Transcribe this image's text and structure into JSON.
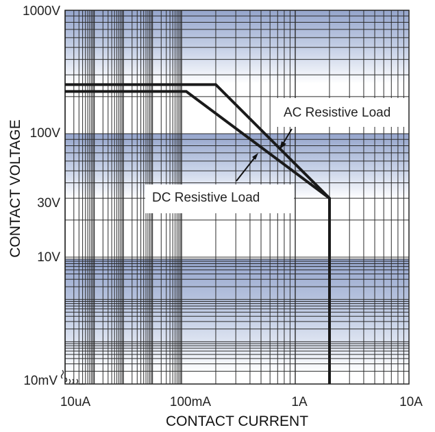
{
  "chart_data": {
    "type": "line",
    "xlabel": "CONTACT CURRENT",
    "ylabel": "CONTACT VOLTAGE",
    "x_ticks": [
      "10uA",
      "100mA",
      "1A",
      "10A"
    ],
    "y_ticks": [
      "1000V",
      "100V",
      "30V",
      "10V",
      "10mV"
    ],
    "grid": true,
    "annotations": [
      "AC Resistive Load",
      "DC Resistive Load"
    ],
    "series": [
      {
        "name": "AC Resistive Load",
        "color": "#1a1a1a",
        "points": [
          [
            "10uA",
            "250V"
          ],
          [
            "200mA",
            "250V"
          ],
          [
            "2A",
            "30V"
          ],
          [
            "2A",
            "10mV"
          ]
        ]
      },
      {
        "name": "DC Resistive Load",
        "color": "#1a1a1a",
        "points": [
          [
            "10uA",
            "220V"
          ],
          [
            "110mA",
            "220V"
          ],
          [
            "2A",
            "30V"
          ]
        ]
      }
    ]
  }
}
